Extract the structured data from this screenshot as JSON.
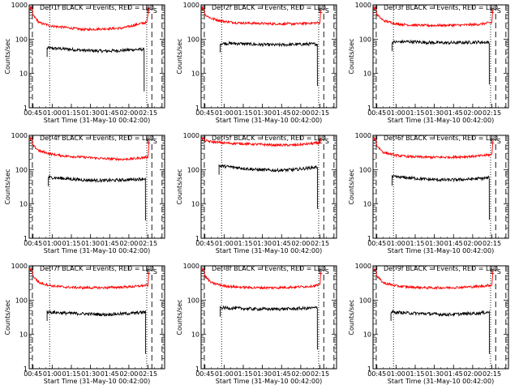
{
  "chart_data": {
    "type": "line",
    "layout": "3x3 grid",
    "x_axis": {
      "label": "Start Time (31-May-10 00:42:00)",
      "ticks": [
        "00:45",
        "01:00",
        "01:15",
        "01:30",
        "01:45",
        "02:00",
        "02:15"
      ],
      "range_minutes": [
        42,
        148
      ]
    },
    "y_axis": {
      "label": "Counts/sec",
      "scale": "log",
      "range": [
        1,
        1000
      ],
      "ticks": [
        "1",
        "10",
        "100",
        "1000"
      ]
    },
    "markers": {
      "start_label": "S",
      "end_label": "E",
      "dashed_times": [
        44.5,
        138,
        146
      ],
      "dotted_times": [
        58,
        134
      ]
    },
    "colors": {
      "events": "#000000",
      "lld": "#ff0000"
    },
    "panels": [
      {
        "title": "Det 1f BLACK = Events, RED = LLD",
        "series": [
          {
            "name": "Events",
            "color": "#000000",
            "x": [
              56,
              70,
              85,
              100,
              115,
              125,
              132
            ],
            "y": [
              55,
              52,
              47,
              45,
              47,
              50,
              50
            ]
          },
          {
            "name": "LLD",
            "color": "#ff0000",
            "x": [
              42,
              44,
              45,
              50,
              60,
              70,
              85,
              100,
              115,
              125,
              132,
              134,
              136
            ],
            "y": [
              800,
              800,
              500,
              300,
              240,
              220,
              190,
              200,
              210,
              260,
              300,
              300,
              900
            ]
          }
        ]
      },
      {
        "title": "Det 2f BLACK = Events, RED = LLD",
        "series": [
          {
            "name": "Events",
            "color": "#000000",
            "x": [
              57,
              70,
              85,
              100,
              115,
              125,
              133
            ],
            "y": [
              75,
              75,
              70,
              68,
              70,
              72,
              72
            ]
          },
          {
            "name": "LLD",
            "color": "#ff0000",
            "x": [
              42,
              44,
              45,
              50,
              60,
              70,
              85,
              100,
              115,
              125,
              133,
              135,
              136
            ],
            "y": [
              800,
              800,
              520,
              400,
              330,
              300,
              290,
              280,
              280,
              290,
              300,
              300,
              900
            ]
          }
        ]
      },
      {
        "title": "Det 3f BLACK = Events, RED = LLD",
        "series": [
          {
            "name": "Events",
            "color": "#000000",
            "x": [
              57,
              70,
              85,
              100,
              115,
              125,
              133
            ],
            "y": [
              82,
              85,
              80,
              78,
              80,
              82,
              80
            ]
          },
          {
            "name": "LLD",
            "color": "#ff0000",
            "x": [
              42,
              44,
              45,
              50,
              60,
              70,
              85,
              100,
              115,
              125,
              133,
              135,
              136
            ],
            "y": [
              800,
              800,
              520,
              350,
              280,
              260,
              250,
              255,
              260,
              270,
              300,
              300,
              900
            ]
          }
        ]
      },
      {
        "title": "Det 4f BLACK = Events, RED = LLD",
        "series": [
          {
            "name": "Events",
            "color": "#000000",
            "x": [
              57,
              70,
              85,
              100,
              115,
              125,
              133
            ],
            "y": [
              60,
              55,
              50,
              48,
              50,
              52,
              55
            ]
          },
          {
            "name": "LLD",
            "color": "#ff0000",
            "x": [
              42,
              44,
              45,
              50,
              60,
              70,
              85,
              100,
              115,
              125,
              133,
              135,
              136
            ],
            "y": [
              800,
              800,
              500,
              350,
              280,
              250,
              230,
              210,
              200,
              210,
              230,
              230,
              900
            ]
          }
        ]
      },
      {
        "title": "Det 5f BLACK = Events, RED = LLD",
        "series": [
          {
            "name": "Events",
            "color": "#000000",
            "x": [
              56,
              60,
              70,
              85,
              100,
              115,
              125,
              133
            ],
            "y": [
              130,
              125,
              115,
              100,
              95,
              100,
              110,
              120
            ]
          },
          {
            "name": "LLD",
            "color": "#ff0000",
            "x": [
              42,
              44,
              45,
              50,
              60,
              70,
              85,
              100,
              115,
              125,
              133,
              135,
              136
            ],
            "y": [
              800,
              800,
              700,
              650,
              600,
              580,
              550,
              520,
              520,
              560,
              600,
              600,
              900
            ]
          }
        ]
      },
      {
        "title": "Det 6f BLACK = Events, RED = LLD",
        "series": [
          {
            "name": "Events",
            "color": "#000000",
            "x": [
              57,
              70,
              85,
              100,
              115,
              125,
              133
            ],
            "y": [
              62,
              58,
              52,
              50,
              52,
              55,
              58
            ]
          },
          {
            "name": "LLD",
            "color": "#ff0000",
            "x": [
              42,
              44,
              45,
              50,
              60,
              70,
              85,
              100,
              115,
              125,
              133,
              135,
              136
            ],
            "y": [
              800,
              800,
              500,
              320,
              260,
              240,
              230,
              230,
              240,
              250,
              270,
              270,
              900
            ]
          }
        ]
      },
      {
        "title": "Det 7f BLACK = Events, RED = LLD",
        "series": [
          {
            "name": "Events",
            "color": "#000000",
            "x": [
              56,
              70,
              85,
              100,
              115,
              125,
              133
            ],
            "y": [
              45,
              42,
              40,
              38,
              40,
              42,
              45
            ]
          },
          {
            "name": "LLD",
            "color": "#ff0000",
            "x": [
              42,
              44,
              45,
              50,
              60,
              70,
              85,
              100,
              115,
              125,
              133,
              135,
              136
            ],
            "y": [
              800,
              800,
              500,
              320,
              260,
              240,
              230,
              230,
              240,
              250,
              270,
              270,
              900
            ]
          }
        ]
      },
      {
        "title": "Det 8f BLACK = Events, RED = LLD",
        "series": [
          {
            "name": "Events",
            "color": "#000000",
            "x": [
              57,
              70,
              85,
              100,
              115,
              125,
              133
            ],
            "y": [
              60,
              58,
              55,
              55,
              56,
              58,
              60
            ]
          },
          {
            "name": "LLD",
            "color": "#ff0000",
            "x": [
              42,
              44,
              45,
              50,
              60,
              70,
              85,
              100,
              115,
              125,
              133,
              135,
              136
            ],
            "y": [
              800,
              800,
              500,
              320,
              260,
              240,
              230,
              230,
              240,
              250,
              270,
              270,
              900
            ]
          }
        ]
      },
      {
        "title": "Det 9f BLACK = Events, RED = LLD",
        "series": [
          {
            "name": "Events",
            "color": "#000000",
            "x": [
              56,
              70,
              85,
              100,
              115,
              125,
              133
            ],
            "y": [
              45,
              42,
              40,
              38,
              40,
              42,
              45
            ]
          },
          {
            "name": "LLD",
            "color": "#ff0000",
            "x": [
              42,
              44,
              45,
              50,
              60,
              70,
              85,
              100,
              115,
              125,
              133,
              135,
              136
            ],
            "y": [
              800,
              800,
              500,
              320,
              260,
              240,
              230,
              230,
              240,
              250,
              270,
              270,
              900
            ]
          }
        ]
      }
    ]
  }
}
